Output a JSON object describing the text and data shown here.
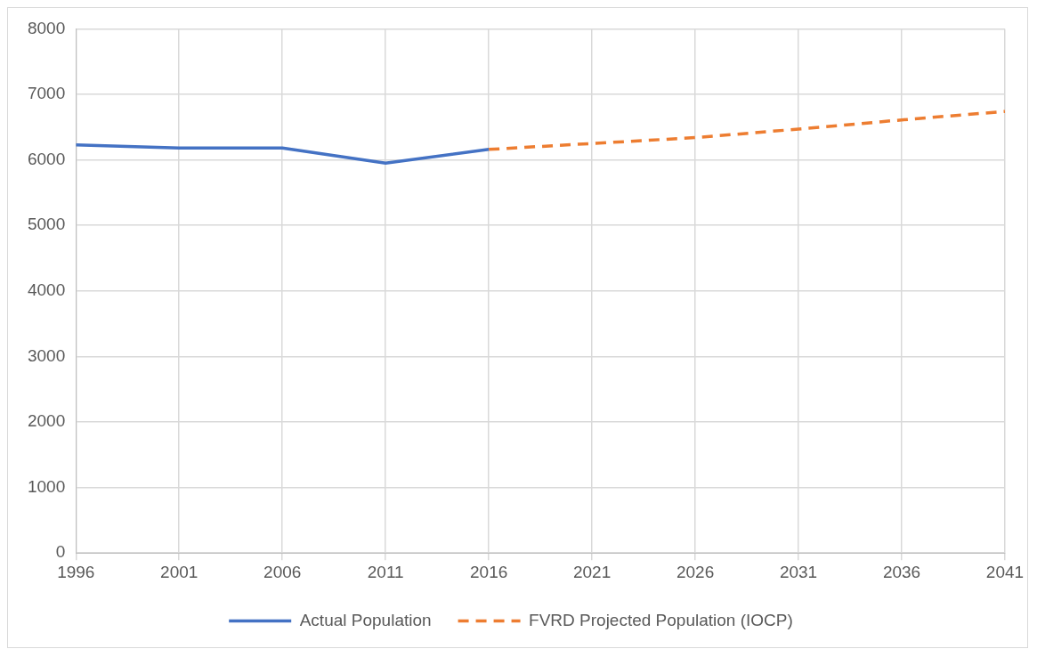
{
  "chart_data": {
    "type": "line",
    "xlim": [
      1996,
      2041
    ],
    "xticks": [
      1996,
      2001,
      2006,
      2011,
      2016,
      2021,
      2026,
      2031,
      2036,
      2041
    ],
    "ylim": [
      0,
      8000
    ],
    "yticks": [
      0,
      1000,
      2000,
      3000,
      4000,
      5000,
      6000,
      7000,
      8000
    ],
    "grid": true,
    "legend": "bottom",
    "marker": "none",
    "series": [
      {
        "name": "Actual Population",
        "color": "#4472c4",
        "line_style": "solid",
        "x": [
          1996,
          2001,
          2006,
          2011,
          2016
        ],
        "values": [
          6230,
          6180,
          6180,
          5950,
          6160
        ]
      },
      {
        "name": "FVRD Projected Population (IOCP)",
        "color": "#ed7d31",
        "line_style": "dashed",
        "x": [
          2016,
          2021,
          2026,
          2031,
          2036,
          2041
        ],
        "values": [
          6160,
          6250,
          6340,
          6470,
          6610,
          6740
        ]
      }
    ]
  }
}
